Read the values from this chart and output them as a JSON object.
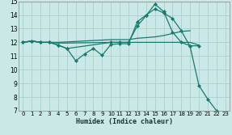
{
  "xlabel": "Humidex (Indice chaleur)",
  "bg_color": "#c9e8e6",
  "grid_color": "#aacfcf",
  "line_color": "#1a7a6e",
  "xlim": [
    -0.5,
    23.5
  ],
  "ylim": [
    7,
    15
  ],
  "xticks": [
    0,
    1,
    2,
    3,
    4,
    5,
    6,
    7,
    8,
    9,
    10,
    11,
    12,
    13,
    14,
    15,
    16,
    17,
    18,
    19,
    20,
    21,
    22,
    23
  ],
  "yticks": [
    7,
    8,
    9,
    10,
    11,
    12,
    13,
    14,
    15
  ],
  "series": [
    {
      "x": [
        0,
        1,
        2,
        3,
        4,
        5,
        6,
        7,
        8,
        9,
        10,
        11,
        12,
        13,
        14,
        15,
        16,
        17,
        18,
        19,
        20,
        21,
        22
      ],
      "y": [
        12.0,
        12.1,
        12.0,
        12.0,
        11.8,
        11.55,
        10.65,
        11.15,
        11.55,
        11.05,
        11.85,
        11.9,
        11.9,
        13.5,
        14.0,
        14.45,
        14.15,
        13.75,
        12.85,
        11.7,
        8.85,
        7.85,
        7.0
      ],
      "marker": "D",
      "markersize": 2.0,
      "linewidth": 0.9
    },
    {
      "x": [
        0,
        1,
        2,
        3,
        4,
        5,
        10,
        11,
        12,
        13,
        14,
        15,
        16,
        17,
        18,
        19,
        20
      ],
      "y": [
        12.0,
        12.1,
        12.0,
        12.0,
        11.8,
        11.55,
        12.0,
        12.0,
        12.0,
        13.2,
        13.95,
        14.8,
        14.25,
        12.75,
        12.0,
        11.75,
        11.75
      ],
      "marker": "D",
      "markersize": 2.0,
      "linewidth": 0.9
    },
    {
      "x": [
        0,
        1,
        2,
        3,
        4,
        5,
        10,
        11,
        12,
        13,
        14,
        15,
        16,
        17,
        18,
        19,
        20
      ],
      "y": [
        12.0,
        12.1,
        12.0,
        12.0,
        11.95,
        11.95,
        12.0,
        12.0,
        12.0,
        12.0,
        12.0,
        12.0,
        12.0,
        12.0,
        12.0,
        12.0,
        11.8
      ],
      "marker": null,
      "markersize": 0,
      "linewidth": 0.9
    },
    {
      "x": [
        0,
        1,
        2,
        3,
        4,
        10,
        11,
        12,
        13,
        14,
        15,
        16,
        17,
        18,
        19
      ],
      "y": [
        12.0,
        12.1,
        12.0,
        12.0,
        12.0,
        12.2,
        12.2,
        12.2,
        12.3,
        12.35,
        12.4,
        12.5,
        12.65,
        12.8,
        12.85
      ],
      "marker": null,
      "markersize": 0,
      "linewidth": 0.9
    }
  ]
}
